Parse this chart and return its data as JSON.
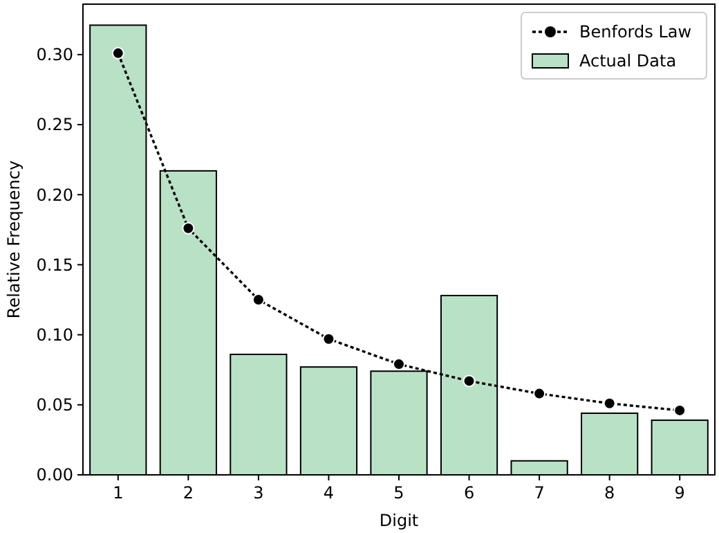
{
  "chart_data": {
    "type": "bar",
    "xlabel": "Digit",
    "ylabel": "Relative Frequency",
    "categories": [
      "1",
      "2",
      "3",
      "4",
      "5",
      "6",
      "7",
      "8",
      "9"
    ],
    "series": [
      {
        "name": "Benfords Law",
        "type": "line",
        "color": "#000000",
        "marker": "circle",
        "line_style": "dotted",
        "values": [
          0.301,
          0.176,
          0.125,
          0.097,
          0.079,
          0.067,
          0.058,
          0.051,
          0.046
        ]
      },
      {
        "name": "Actual Data",
        "color": "#b9e1c6",
        "values": [
          0.321,
          0.217,
          0.086,
          0.077,
          0.074,
          0.128,
          0.01,
          0.044,
          0.039
        ]
      }
    ],
    "ylim": [
      0,
      0.336
    ],
    "yticks": [
      {
        "value": 0,
        "label": "0.00"
      },
      {
        "value": 0.05,
        "label": "0.05"
      },
      {
        "value": 0.1,
        "label": "0.10"
      },
      {
        "value": 0.15,
        "label": "0.15"
      },
      {
        "value": 0.2,
        "label": "0.20"
      },
      {
        "value": 0.25,
        "label": "0.25"
      },
      {
        "value": 0.3,
        "label": "0.30"
      }
    ],
    "grid": false,
    "legend": "top right"
  }
}
